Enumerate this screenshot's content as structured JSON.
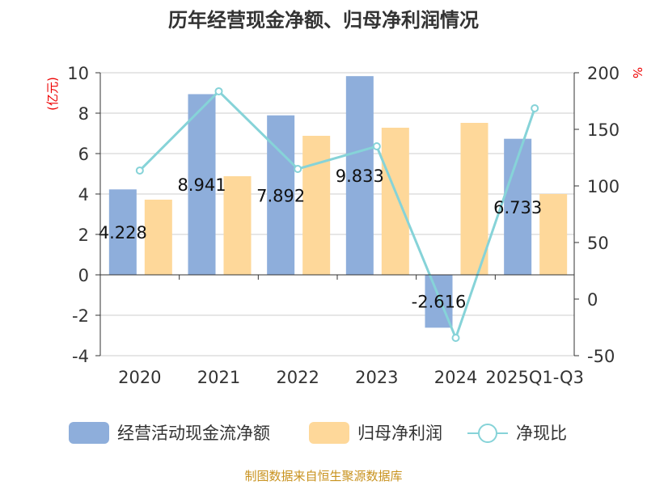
{
  "chart_data": {
    "type": "bar",
    "title": "历年经营现金净额、归母净利润情况",
    "categories": [
      "2020",
      "2021",
      "2022",
      "2023",
      "2024",
      "2025Q1-Q3"
    ],
    "ylabel": "(亿元)",
    "y2label": "%",
    "ylim": [
      -4,
      10
    ],
    "yticks": [
      -4,
      -2,
      0,
      2,
      4,
      6,
      8,
      10
    ],
    "y2lim": [
      -50,
      200
    ],
    "y2ticks": [
      -50,
      0,
      50,
      100,
      150,
      200
    ],
    "grid": true,
    "legend_position": "bottom",
    "series": [
      {
        "name": "经营活动现金流净额",
        "type": "bar",
        "axis": "left",
        "color": "#8eaedb",
        "values": [
          4.228,
          8.941,
          7.892,
          9.833,
          -2.616,
          6.733
        ],
        "labels": [
          "4.228",
          "8.941",
          "7.892",
          "9.833",
          "-2.616",
          "6.733"
        ]
      },
      {
        "name": "归母净利润",
        "type": "bar",
        "axis": "left",
        "color": "#fed89a",
        "values": [
          3.72,
          4.88,
          6.88,
          7.28,
          7.52,
          4.0
        ]
      },
      {
        "name": "净现比",
        "type": "line",
        "axis": "right",
        "color": "#86d3d8",
        "values": [
          113.6,
          183.6,
          115.0,
          135.0,
          -34.3,
          168.6
        ]
      }
    ],
    "source": "制图数据来自恒生聚源数据库"
  }
}
